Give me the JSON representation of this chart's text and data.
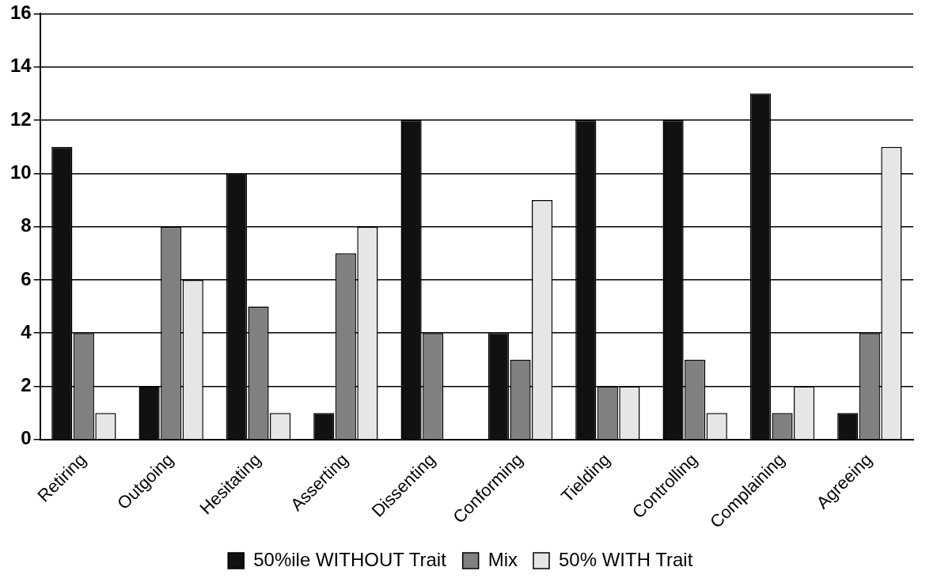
{
  "chart_data": {
    "type": "bar",
    "categories": [
      "Retiring",
      "Outgoing",
      "Hesitating",
      "Asserting",
      "Dissenting",
      "Conforming",
      "Tielding",
      "Controlling",
      "Complaining",
      "Agreeing"
    ],
    "series": [
      {
        "name": "50%ile WITHOUT Trait",
        "color": "#111111",
        "values": [
          11,
          2,
          10,
          1,
          12,
          4,
          12,
          12,
          13,
          1
        ]
      },
      {
        "name": "Mix",
        "color": "#808080",
        "values": [
          4,
          8,
          5,
          7,
          4,
          3,
          2,
          3,
          1,
          4
        ]
      },
      {
        "name": "50% WITH Trait",
        "color": "#e6e6e6",
        "values": [
          1,
          6,
          1,
          8,
          0,
          9,
          2,
          1,
          2,
          11
        ]
      }
    ],
    "ylim": [
      0,
      16
    ],
    "yticks": [
      0,
      2,
      4,
      6,
      8,
      10,
      12,
      14,
      16
    ],
    "grid": "y",
    "legend": "bottom"
  }
}
